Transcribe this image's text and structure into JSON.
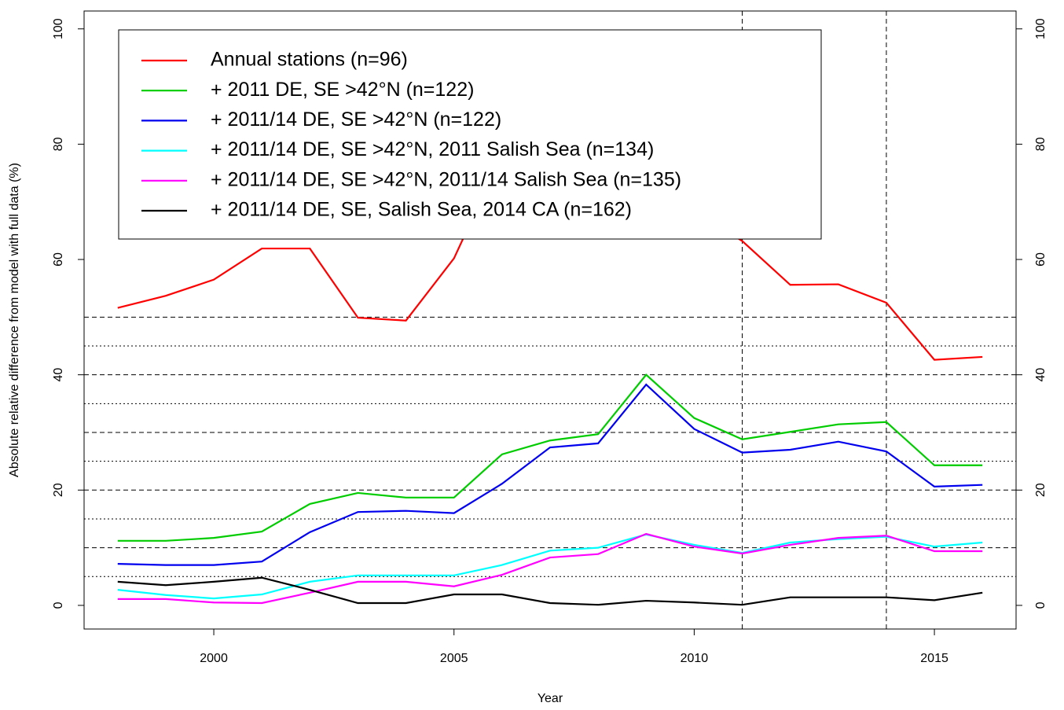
{
  "chart_data": {
    "type": "line",
    "x_label": "Year",
    "y_label": "Absolute relative difference from model with full data (%)",
    "x": [
      1998,
      1999,
      2000,
      2001,
      2002,
      2003,
      2004,
      2005,
      2006,
      2007,
      2008,
      2009,
      2010,
      2011,
      2012,
      2013,
      2014,
      2015,
      2016
    ],
    "series": [
      {
        "name": "Annual stations (n=96)",
        "color": "#ff0000",
        "values": [
          51.6,
          53.7,
          56.5,
          61.9,
          61.9,
          49.9,
          49.4,
          60.2,
          78.2,
          70.2,
          65.8,
          78.4,
          68.5,
          63.2,
          55.6,
          55.7,
          52.5,
          42.6,
          43.1
        ]
      },
      {
        "name": "+ 2011 DE, SE >42°N (n=122)",
        "color": "#00cc00",
        "values": [
          11.2,
          11.2,
          11.7,
          12.8,
          17.6,
          19.5,
          18.7,
          18.7,
          26.2,
          28.6,
          29.7,
          40.0,
          32.5,
          28.8,
          30.1,
          31.4,
          31.8,
          24.3,
          24.3
        ]
      },
      {
        "name": "+ 2011/14 DE, SE >42°N (n=122)",
        "color": "#0000ee",
        "values": [
          7.2,
          7.0,
          7.0,
          7.6,
          12.7,
          16.2,
          16.4,
          16.0,
          21.1,
          27.4,
          28.1,
          38.3,
          30.6,
          26.5,
          27.0,
          28.4,
          26.7,
          20.6,
          20.9
        ]
      },
      {
        "name": "+ 2011/14 DE, SE >42°N, 2011 Salish Sea (n=134)",
        "color": "#00ffff",
        "values": [
          2.7,
          1.8,
          1.2,
          1.9,
          4.1,
          5.2,
          5.2,
          5.2,
          7.0,
          9.5,
          10.0,
          12.3,
          10.5,
          9.1,
          10.9,
          11.5,
          11.9,
          10.2,
          10.9
        ]
      },
      {
        "name": "+ 2011/14 DE, SE >42°N, 2011/14 Salish Sea (n=135)",
        "color": "#ff00ff",
        "values": [
          1.1,
          1.1,
          0.5,
          0.4,
          2.2,
          4.1,
          4.1,
          3.3,
          5.3,
          8.3,
          8.9,
          12.4,
          10.2,
          9.0,
          10.5,
          11.7,
          12.1,
          9.4,
          9.4
        ]
      },
      {
        "name": "+ 2011/14 DE, SE, Salish Sea, 2014 CA (n=162)",
        "color": "#000000",
        "values": [
          4.1,
          3.5,
          4.1,
          4.8,
          2.7,
          0.4,
          0.4,
          1.9,
          1.9,
          0.4,
          0.1,
          0.8,
          0.5,
          0.1,
          1.4,
          1.4,
          1.4,
          0.9,
          2.2
        ]
      }
    ],
    "xlim": [
      1997.3,
      2016.7
    ],
    "xticks": [
      2000,
      2005,
      2010,
      2015
    ],
    "ylim": [
      -4.1,
      103.1
    ],
    "yticks": [
      0,
      20,
      40,
      60,
      80,
      100
    ],
    "y2lim": [
      -4.1,
      103.1
    ],
    "y2ticks": [
      0,
      20,
      40,
      60,
      80,
      100
    ],
    "hlines_dashed": [
      10,
      20,
      30,
      40,
      50
    ],
    "hlines_dotted": [
      5,
      15,
      25,
      35,
      45
    ],
    "vlines_dashed": [
      2011,
      2014
    ],
    "legend_position": "top-left"
  }
}
